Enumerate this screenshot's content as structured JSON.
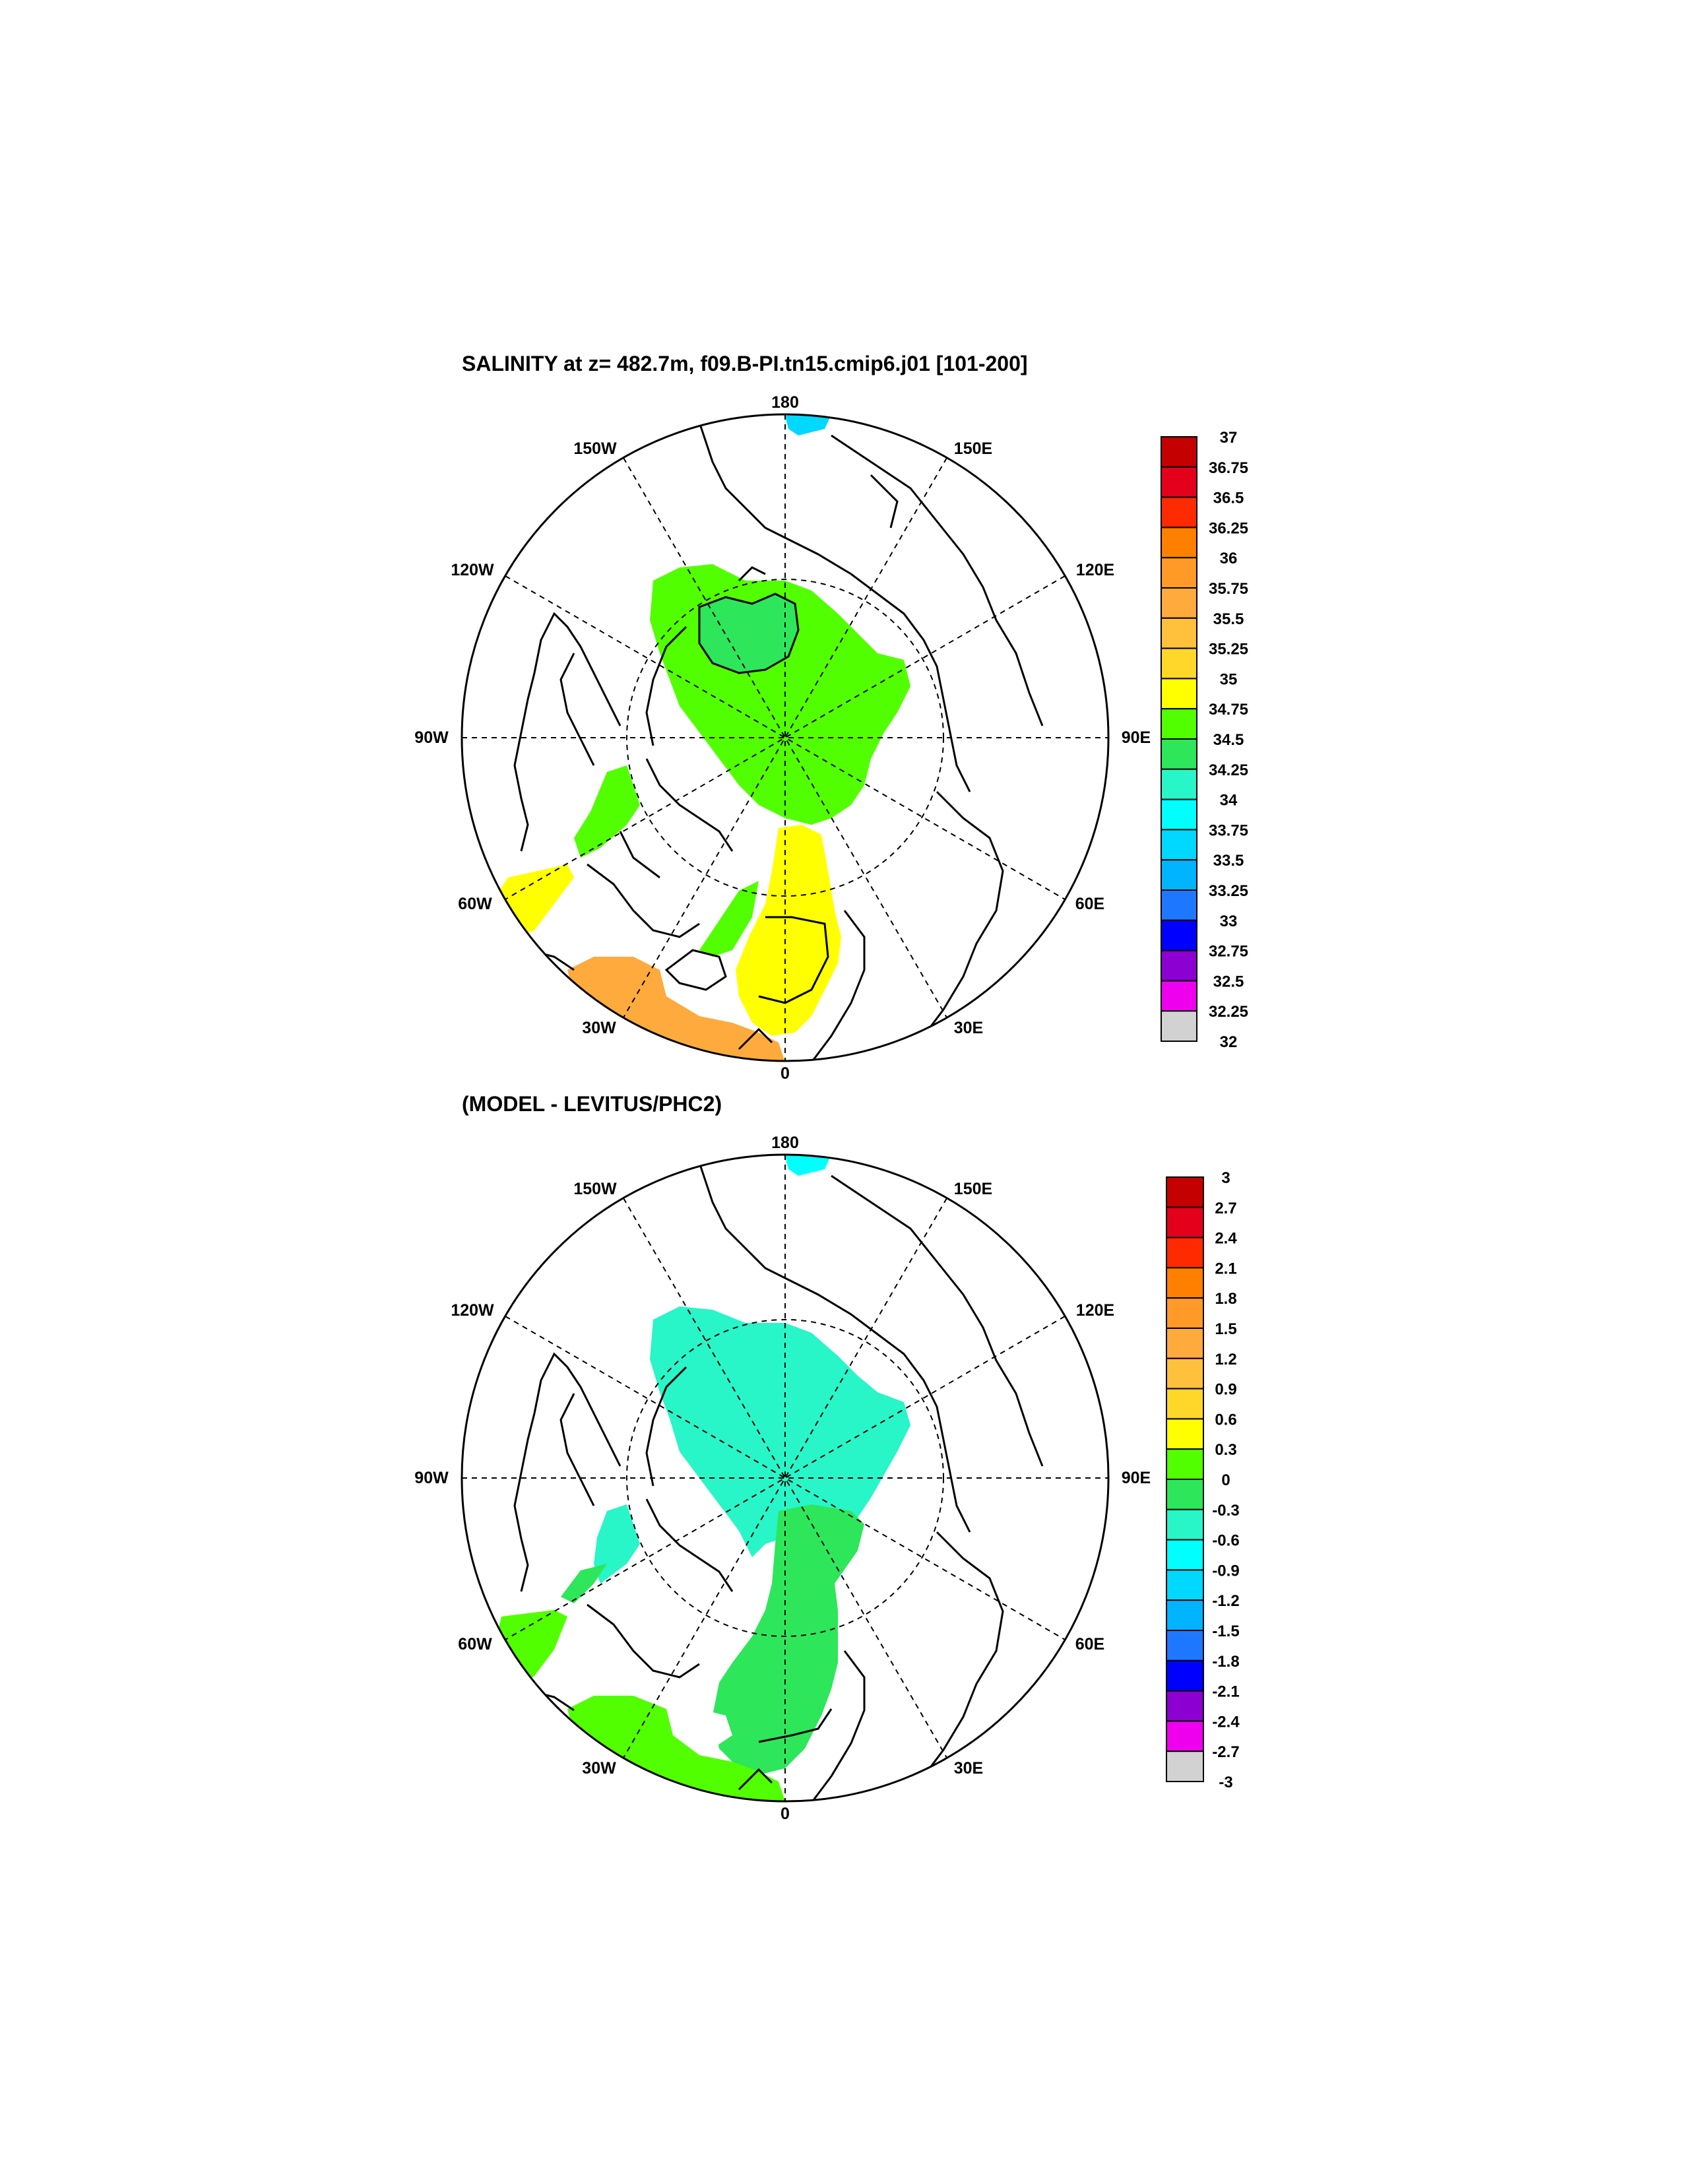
{
  "panels": [
    {
      "title": "SALINITY at z= 482.7m, f09.B-PI.tn15.cmip6.j01 [101-200]",
      "longitude_labels": [
        "180",
        "150E",
        "120E",
        "90E",
        "60E",
        "30E",
        "0",
        "30W",
        "60W",
        "90W",
        "120W",
        "150W"
      ],
      "colorbar": {
        "labels": [
          "37",
          "36.75",
          "36.5",
          "36.25",
          "36",
          "35.75",
          "35.5",
          "35.25",
          "35",
          "34.75",
          "34.5",
          "34.25",
          "34",
          "33.75",
          "33.5",
          "33.25",
          "33",
          "32.75",
          "32.5",
          "32.25",
          "32"
        ],
        "colors": [
          "#c40000",
          "#e4001a",
          "#ff2a00",
          "#ff7f00",
          "#ff9a28",
          "#ffaa3c",
          "#ffc03c",
          "#ffd72a",
          "#ffff00",
          "#52ff00",
          "#2ee65a",
          "#28f5c8",
          "#00ffff",
          "#00d8ff",
          "#00b4ff",
          "#1e78ff",
          "#0000ff",
          "#8c00d2",
          "#ee00ee",
          "#d2d2d2",
          "#6e6e6e"
        ]
      }
    },
    {
      "title": "(MODEL - LEVITUS/PHC2)",
      "longitude_labels": [
        "180",
        "150E",
        "120E",
        "90E",
        "60E",
        "30E",
        "0",
        "30W",
        "60W",
        "90W",
        "120W",
        "150W"
      ],
      "colorbar": {
        "labels": [
          "3",
          "2.7",
          "2.4",
          "2.1",
          "1.8",
          "1.5",
          "1.2",
          "0.9",
          "0.6",
          "0.3",
          "0",
          "-0.3",
          "-0.6",
          "-0.9",
          "-1.2",
          "-1.5",
          "-1.8",
          "-2.1",
          "-2.4",
          "-2.7",
          "-3"
        ],
        "colors": [
          "#c40000",
          "#e4001a",
          "#ff2a00",
          "#ff7f00",
          "#ff9a28",
          "#ffaa3c",
          "#ffc03c",
          "#ffd72a",
          "#ffff00",
          "#52ff00",
          "#2ee65a",
          "#28f5c8",
          "#00ffff",
          "#00d8ff",
          "#00b4ff",
          "#1e78ff",
          "#0000ff",
          "#8c00d2",
          "#ee00ee",
          "#d2d2d2",
          "#6e6e6e"
        ]
      }
    }
  ],
  "map_colors": {
    "land_outline": "#000000",
    "upper_central_basin": "#52ff00",
    "upper_canada_basin": "#2ee65a",
    "upper_atlantic_inflow": "#ffff00",
    "upper_north_atlantic": "#ffaa3c",
    "upper_arctic_small": "#00d8ff",
    "lower_central_basin": "#28f5c8",
    "lower_atlantic_inflow": "#2ee65a",
    "lower_north_atlantic": "#52ff00",
    "lower_arctic_small": "#00ffff"
  }
}
